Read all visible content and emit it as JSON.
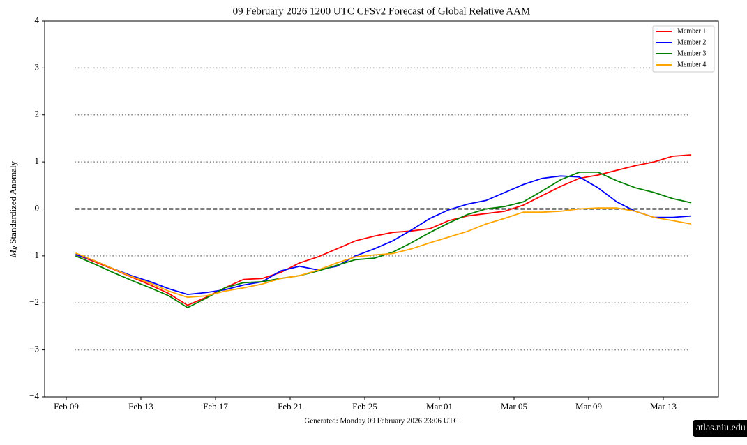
{
  "chart_data": {
    "type": "line",
    "title": "09  February  2026 1200 UTC   CFSv2 Forecast of Global Relative AAM",
    "y_label_symbol": "M",
    "y_label_subscript": "R",
    "y_label": "Standardized Anomaly",
    "footer": "Generated: Monday  09  February  2026  23:06 UTC",
    "badge": "atlas.niu.edu",
    "x": [
      "Feb 09",
      "Feb 10",
      "Feb 11",
      "Feb 12",
      "Feb 13",
      "Feb 14",
      "Feb 15",
      "Feb 16",
      "Feb 17",
      "Feb 18",
      "Feb 19",
      "Feb 20",
      "Feb 21",
      "Feb 22",
      "Feb 23",
      "Feb 24",
      "Feb 25",
      "Feb 26",
      "Feb 27",
      "Feb 28",
      "Mar 01",
      "Mar 02",
      "Mar 03",
      "Mar 04",
      "Mar 05",
      "Mar 06",
      "Mar 07",
      "Mar 08",
      "Mar 09",
      "Mar 10",
      "Mar 11",
      "Mar 12",
      "Mar 13",
      "Mar 14"
    ],
    "xticks": [
      "Feb 09",
      "Feb 13",
      "Feb 17",
      "Feb 21",
      "Feb 25",
      "Mar 01",
      "Mar 05",
      "Mar 09",
      "Mar 13"
    ],
    "ylim": [
      -4,
      4
    ],
    "yticks": [
      {
        "value": -4,
        "label": "−4"
      },
      {
        "value": -3,
        "label": "−3"
      },
      {
        "value": -2,
        "label": "−2"
      },
      {
        "value": -1,
        "label": "−1"
      },
      0,
      1,
      2,
      3,
      4
    ],
    "dotted_lines": [
      -3,
      -2,
      -1,
      1,
      2,
      3
    ],
    "dashed_line": 0,
    "legend": "upper right",
    "series": [
      {
        "name": "Member 1",
        "color": "#ff0000",
        "values": [
          -0.97,
          -1.12,
          -1.28,
          -1.45,
          -1.62,
          -1.8,
          -2.05,
          -1.88,
          -1.68,
          -1.5,
          -1.48,
          -1.35,
          -1.15,
          -1.02,
          -0.85,
          -0.68,
          -0.58,
          -0.5,
          -0.47,
          -0.42,
          -0.25,
          -0.15,
          -0.1,
          -0.05,
          0.08,
          0.28,
          0.48,
          0.65,
          0.72,
          0.82,
          0.92,
          1.0,
          1.12,
          1.15
        ]
      },
      {
        "name": "Member 2",
        "color": "#0000ff",
        "values": [
          -0.97,
          -1.1,
          -1.27,
          -1.42,
          -1.55,
          -1.7,
          -1.82,
          -1.78,
          -1.72,
          -1.62,
          -1.55,
          -1.32,
          -1.22,
          -1.3,
          -1.22,
          -1.0,
          -0.85,
          -0.68,
          -0.45,
          -0.2,
          -0.02,
          0.1,
          0.18,
          0.35,
          0.52,
          0.65,
          0.7,
          0.68,
          0.45,
          0.15,
          -0.05,
          -0.18,
          -0.18,
          -0.15
        ]
      },
      {
        "name": "Member 3",
        "color": "#008000",
        "values": [
          -1.0,
          -1.17,
          -1.35,
          -1.52,
          -1.68,
          -1.85,
          -2.1,
          -1.9,
          -1.68,
          -1.57,
          -1.55,
          -1.48,
          -1.42,
          -1.32,
          -1.2,
          -1.08,
          -1.05,
          -0.92,
          -0.72,
          -0.5,
          -0.3,
          -0.12,
          0.0,
          0.05,
          0.15,
          0.38,
          0.62,
          0.78,
          0.78,
          0.6,
          0.45,
          0.35,
          0.22,
          0.13
        ]
      },
      {
        "name": "Member 4",
        "color": "#ffa500",
        "values": [
          -0.94,
          -1.1,
          -1.27,
          -1.44,
          -1.58,
          -1.75,
          -1.88,
          -1.85,
          -1.75,
          -1.68,
          -1.6,
          -1.48,
          -1.42,
          -1.3,
          -1.15,
          -1.02,
          -0.98,
          -0.95,
          -0.85,
          -0.72,
          -0.6,
          -0.48,
          -0.32,
          -0.2,
          -0.07,
          -0.07,
          -0.05,
          0.0,
          0.02,
          0.02,
          -0.05,
          -0.18,
          -0.25,
          -0.32
        ]
      }
    ]
  }
}
